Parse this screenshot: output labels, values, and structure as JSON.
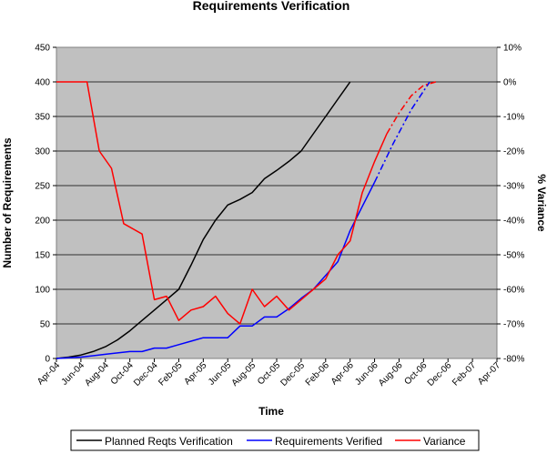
{
  "chart_data": {
    "type": "line",
    "title": "Requirements Verification",
    "xlabel": "Time",
    "ylabel": "Number of Requirements",
    "y2label": "% Variance",
    "ylim": [
      0,
      450
    ],
    "y2lim": [
      -80,
      10
    ],
    "yticks": [
      "0",
      "50",
      "100",
      "150",
      "200",
      "250",
      "300",
      "350",
      "400",
      "450"
    ],
    "y2ticks": [
      "-80%",
      "-70%",
      "-60%",
      "-50%",
      "-40%",
      "-30%",
      "-20%",
      "-10%",
      "0%",
      "10%"
    ],
    "x": [
      "Apr-04",
      "Jun-04",
      "Aug-04",
      "Oct-04",
      "Dec-04",
      "Feb-05",
      "Apr-05",
      "Jun-05",
      "Aug-05",
      "Oct-05",
      "Dec-05",
      "Feb-06",
      "Apr-06",
      "Jun-06",
      "Aug-06",
      "Oct-06",
      "Dec-06",
      "Feb-07",
      "Apr-07"
    ],
    "grid": true,
    "plot_background": "#c0c0c0",
    "legend_position": "bottom",
    "series": [
      {
        "name": "Planned Reqts Verification",
        "color": "#000000",
        "axis": "left",
        "points": [
          {
            "t": 0,
            "v": 0
          },
          {
            "t": 2,
            "v": 2
          },
          {
            "t": 4,
            "v": 5
          },
          {
            "t": 6,
            "v": 10
          },
          {
            "t": 8,
            "v": 17
          },
          {
            "t": 10,
            "v": 27
          },
          {
            "t": 12,
            "v": 40
          },
          {
            "t": 14,
            "v": 55
          },
          {
            "t": 16,
            "v": 70
          },
          {
            "t": 18,
            "v": 85
          },
          {
            "t": 20,
            "v": 100
          },
          {
            "t": 22,
            "v": 135
          },
          {
            "t": 24,
            "v": 172
          },
          {
            "t": 26,
            "v": 200
          },
          {
            "t": 28,
            "v": 222
          },
          {
            "t": 30,
            "v": 230
          },
          {
            "t": 32,
            "v": 240
          },
          {
            "t": 34,
            "v": 260
          },
          {
            "t": 36,
            "v": 272
          },
          {
            "t": 38,
            "v": 285
          },
          {
            "t": 40,
            "v": 300
          },
          {
            "t": 42,
            "v": 325
          },
          {
            "t": 44,
            "v": 350
          },
          {
            "t": 46,
            "v": 375
          },
          {
            "t": 48,
            "v": 400
          }
        ]
      },
      {
        "name": "Requirements Verified",
        "color": "#0000ff",
        "axis": "left",
        "points": [
          {
            "t": 0,
            "v": 0
          },
          {
            "t": 2,
            "v": 1
          },
          {
            "t": 4,
            "v": 2
          },
          {
            "t": 6,
            "v": 4
          },
          {
            "t": 8,
            "v": 6
          },
          {
            "t": 10,
            "v": 8
          },
          {
            "t": 12,
            "v": 10
          },
          {
            "t": 14,
            "v": 10
          },
          {
            "t": 16,
            "v": 15
          },
          {
            "t": 18,
            "v": 15
          },
          {
            "t": 20,
            "v": 20
          },
          {
            "t": 22,
            "v": 25
          },
          {
            "t": 24,
            "v": 30
          },
          {
            "t": 26,
            "v": 30
          },
          {
            "t": 28,
            "v": 30
          },
          {
            "t": 30,
            "v": 47
          },
          {
            "t": 32,
            "v": 47
          },
          {
            "t": 34,
            "v": 60
          },
          {
            "t": 36,
            "v": 60
          },
          {
            "t": 38,
            "v": 72
          },
          {
            "t": 40,
            "v": 87
          },
          {
            "t": 42,
            "v": 100
          },
          {
            "t": 44,
            "v": 120
          },
          {
            "t": 46,
            "v": 140
          },
          {
            "t": 48,
            "v": 185
          },
          {
            "t": 50,
            "v": 220
          },
          {
            "t": 52,
            "v": 255
          }
        ],
        "projection": [
          {
            "t": 52,
            "v": 255
          },
          {
            "t": 55,
            "v": 310
          },
          {
            "t": 58,
            "v": 360
          },
          {
            "t": 61,
            "v": 400
          }
        ]
      },
      {
        "name": "Variance",
        "color": "#ff0000",
        "axis": "right",
        "points": [
          {
            "t": 0,
            "v": 0
          },
          {
            "t": 5,
            "v": 0
          },
          {
            "t": 7,
            "v": -20
          },
          {
            "t": 9,
            "v": -25
          },
          {
            "t": 11,
            "v": -41
          },
          {
            "t": 14,
            "v": -44
          },
          {
            "t": 16,
            "v": -63
          },
          {
            "t": 18,
            "v": -62
          },
          {
            "t": 20,
            "v": -69
          },
          {
            "t": 22,
            "v": -66
          },
          {
            "t": 24,
            "v": -65
          },
          {
            "t": 26,
            "v": -62
          },
          {
            "t": 28,
            "v": -67
          },
          {
            "t": 30,
            "v": -70
          },
          {
            "t": 32,
            "v": -60
          },
          {
            "t": 34,
            "v": -65
          },
          {
            "t": 36,
            "v": -62
          },
          {
            "t": 38,
            "v": -66
          },
          {
            "t": 40,
            "v": -63
          },
          {
            "t": 42,
            "v": -60
          },
          {
            "t": 44,
            "v": -57
          },
          {
            "t": 46,
            "v": -50
          },
          {
            "t": 48,
            "v": -46
          },
          {
            "t": 50,
            "v": -32
          },
          {
            "t": 52,
            "v": -23
          },
          {
            "t": 54,
            "v": -15
          }
        ],
        "projection": [
          {
            "t": 54,
            "v": -15
          },
          {
            "t": 56,
            "v": -9
          },
          {
            "t": 58,
            "v": -4
          },
          {
            "t": 60,
            "v": -1
          },
          {
            "t": 62,
            "v": 0
          }
        ]
      }
    ]
  }
}
